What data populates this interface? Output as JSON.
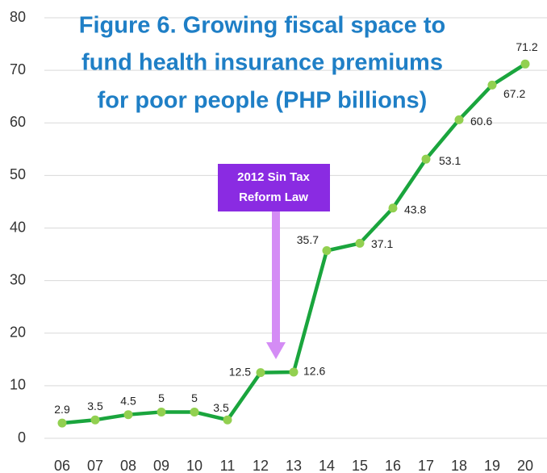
{
  "chart_data": {
    "type": "line",
    "title": [
      "Figure 6. Growing fiscal space to",
      "fund health insurance premiums",
      "for poor people (PHP billions)"
    ],
    "annotation": [
      "2012 Sin Tax",
      "Reform Law"
    ],
    "categories": [
      "06",
      "07",
      "08",
      "09",
      "10",
      "11",
      "12",
      "13",
      "14",
      "15",
      "16",
      "17",
      "18",
      "19",
      "20"
    ],
    "values": [
      2.9,
      3.5,
      4.5,
      5,
      5,
      3.5,
      12.5,
      12.6,
      35.7,
      37.1,
      43.8,
      53.1,
      60.6,
      67.2,
      71.2
    ],
    "color": "#1aa53d",
    "marker_color": "#92d050",
    "ylim": [
      0,
      80
    ],
    "yticks": [
      0,
      10,
      20,
      30,
      40,
      50,
      60,
      70,
      80
    ],
    "grid": true
  }
}
